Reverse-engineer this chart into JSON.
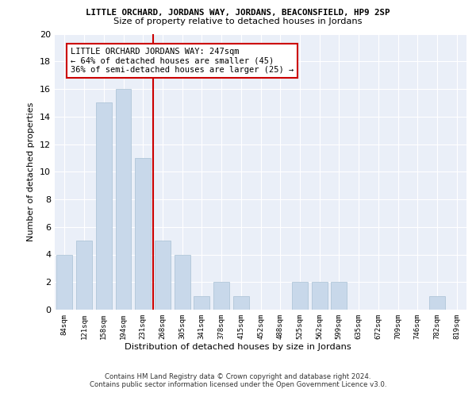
{
  "title": "LITTLE ORCHARD, JORDANS WAY, JORDANS, BEACONSFIELD, HP9 2SP",
  "subtitle": "Size of property relative to detached houses in Jordans",
  "xlabel": "Distribution of detached houses by size in Jordans",
  "ylabel": "Number of detached properties",
  "bar_color": "#c8d8ea",
  "bar_edge_color": "#a8c0d4",
  "background_color": "#eaeff8",
  "categories": [
    "84sqm",
    "121sqm",
    "158sqm",
    "194sqm",
    "231sqm",
    "268sqm",
    "305sqm",
    "341sqm",
    "378sqm",
    "415sqm",
    "452sqm",
    "488sqm",
    "525sqm",
    "562sqm",
    "599sqm",
    "635sqm",
    "672sqm",
    "709sqm",
    "746sqm",
    "782sqm",
    "819sqm"
  ],
  "values": [
    4,
    5,
    15,
    16,
    11,
    5,
    4,
    1,
    2,
    1,
    0,
    0,
    2,
    2,
    2,
    0,
    0,
    0,
    0,
    1,
    0
  ],
  "ylim": [
    0,
    20
  ],
  "yticks": [
    0,
    2,
    4,
    6,
    8,
    10,
    12,
    14,
    16,
    18,
    20
  ],
  "vline_x": 4.5,
  "vline_color": "#cc0000",
  "annotation_text": "LITTLE ORCHARD JORDANS WAY: 247sqm\n← 64% of detached houses are smaller (45)\n36% of semi-detached houses are larger (25) →",
  "annotation_box_color": "#ffffff",
  "annotation_box_edge": "#cc0000",
  "footer_text": "Contains HM Land Registry data © Crown copyright and database right 2024.\nContains public sector information licensed under the Open Government Licence v3.0.",
  "bar_width": 0.8
}
